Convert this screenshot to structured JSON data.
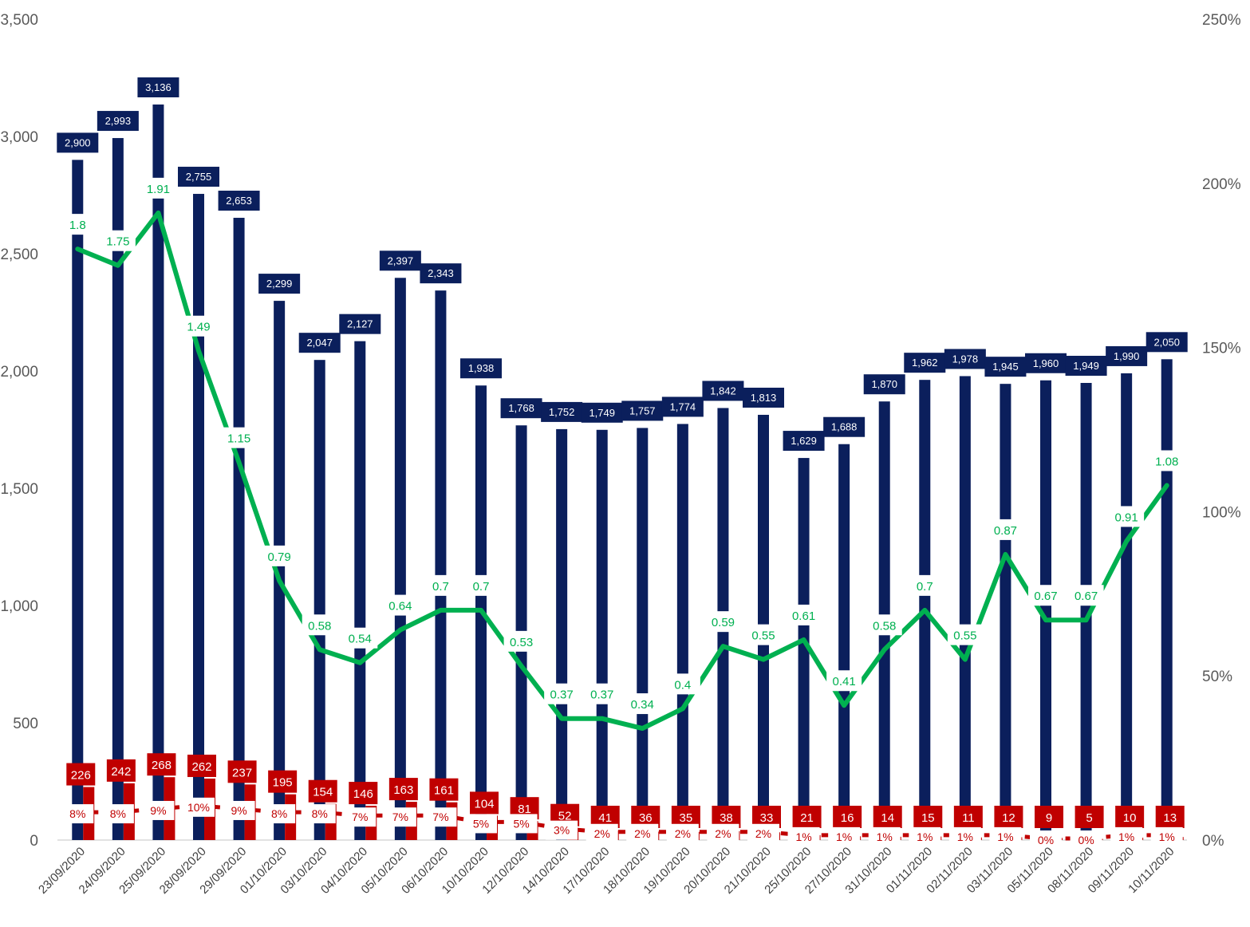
{
  "chart_data": {
    "type": "bar",
    "categories": [
      "23/09/2020",
      "24/09/2020",
      "25/09/2020",
      "28/09/2020",
      "29/09/2020",
      "01/10/2020",
      "03/10/2020",
      "04/10/2020",
      "05/10/2020",
      "06/10/2020",
      "10/10/2020",
      "12/10/2020",
      "14/10/2020",
      "17/10/2020",
      "18/10/2020",
      "19/10/2020",
      "20/10/2020",
      "21/10/2020",
      "25/10/2020",
      "27/10/2020",
      "31/10/2020",
      "01/11/2020",
      "02/11/2020",
      "03/11/2020",
      "05/11/2020",
      "08/11/2020",
      "09/11/2020",
      "10/11/2020"
    ],
    "series": [
      {
        "type": "bar",
        "axis": "left",
        "color": "#0b1f5c",
        "values": [
          2900,
          2993,
          3136,
          2755,
          2653,
          2299,
          2047,
          2127,
          2397,
          2343,
          1938,
          1768,
          1752,
          1749,
          1757,
          1774,
          1842,
          1813,
          1629,
          1688,
          1870,
          1962,
          1978,
          1945,
          1960,
          1949,
          1990,
          2050
        ],
        "labels": [
          "2,900",
          "2,993",
          "3,136",
          "2,755",
          "2,653",
          "2,299",
          "2,047",
          "2,127",
          "2,397",
          "2,343",
          "1,938",
          "1,768",
          "1,752",
          "1,749",
          "1,757",
          "1,774",
          "1,842",
          "1,813",
          "1,629",
          "1,688",
          "1,870",
          "1,962",
          "1,978",
          "1,945",
          "1,960",
          "1,949",
          "1,990",
          "2,050"
        ]
      },
      {
        "type": "bar",
        "axis": "left",
        "color": "#c00000",
        "values": [
          226,
          242,
          268,
          262,
          237,
          195,
          154,
          146,
          163,
          161,
          104,
          81,
          52,
          41,
          36,
          35,
          38,
          33,
          21,
          16,
          14,
          15,
          11,
          12,
          9,
          5,
          10,
          13
        ],
        "labels": [
          "226",
          "242",
          "268",
          "262",
          "237",
          "195",
          "154",
          "146",
          "163",
          "161",
          "104",
          "81",
          "52",
          "41",
          "36",
          "35",
          "38",
          "33",
          "21",
          "16",
          "14",
          "15",
          "11",
          "12",
          "9",
          "5",
          "10",
          "13"
        ]
      },
      {
        "type": "line",
        "axis": "right",
        "color": "#00b050",
        "values": [
          1.8,
          1.75,
          1.91,
          1.49,
          1.15,
          0.79,
          0.58,
          0.54,
          0.64,
          0.7,
          0.7,
          0.53,
          0.37,
          0.37,
          0.34,
          0.4,
          0.59,
          0.55,
          0.61,
          0.41,
          0.58,
          0.7,
          0.55,
          0.87,
          0.67,
          0.67,
          0.91,
          1.08
        ],
        "labels": [
          "1.8",
          "1.75",
          "1.91",
          "1.49",
          "1.15",
          "0.79",
          "0.58",
          "0.54",
          "0.64",
          "0.7",
          "0.7",
          "0.53",
          "0.37",
          "0.37",
          "0.34",
          "0.4",
          "0.59",
          "0.55",
          "0.61",
          "0.41",
          "0.58",
          "0.7",
          "0.55",
          "0.87",
          "0.67",
          "0.67",
          "0.91",
          "1.08"
        ]
      },
      {
        "type": "line",
        "axis": "right",
        "style": "dashed",
        "color": "#c00000",
        "values": [
          0.08,
          0.08,
          0.09,
          0.1,
          0.09,
          0.08,
          0.08,
          0.07,
          0.07,
          0.07,
          0.05,
          0.05,
          0.03,
          0.02,
          0.02,
          0.02,
          0.02,
          0.02,
          0.01,
          0.01,
          0.01,
          0.01,
          0.01,
          0.01,
          0.0,
          0.0,
          0.01,
          0.01
        ],
        "labels": [
          "8%",
          "8%",
          "9%",
          "10%",
          "9%",
          "8%",
          "8%",
          "7%",
          "7%",
          "7%",
          "5%",
          "5%",
          "3%",
          "2%",
          "2%",
          "2%",
          "2%",
          "2%",
          "1%",
          "1%",
          "1%",
          "1%",
          "1%",
          "1%",
          "0%",
          "0%",
          "1%",
          "1%"
        ]
      }
    ],
    "left_axis": {
      "ylim": [
        0,
        3500
      ],
      "ticks": [
        "0",
        "500",
        "1,000",
        "1,500",
        "2,000",
        "2,500",
        "3,000",
        "3,500"
      ]
    },
    "right_axis": {
      "ylim": [
        0,
        2.5
      ],
      "ticks": [
        "0%",
        "50%",
        "100%",
        "150%",
        "200%",
        "250%"
      ]
    },
    "grid": false,
    "legend": "none"
  }
}
